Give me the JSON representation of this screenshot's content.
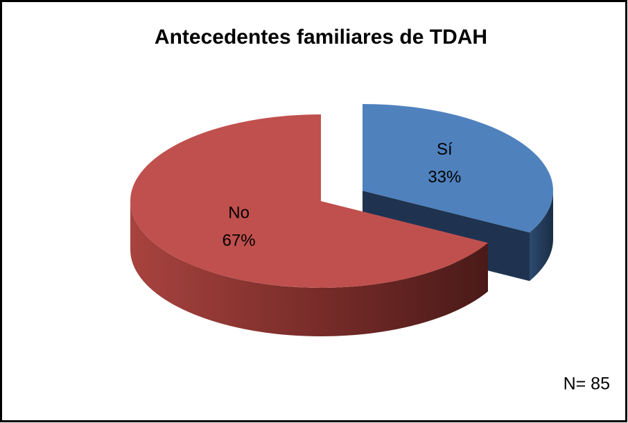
{
  "chart_data": {
    "type": "pie",
    "title": "Antecedentes familiares de  TDAH",
    "categories": [
      "Sí",
      "No"
    ],
    "values": [
      33,
      67
    ],
    "value_labels": [
      "33%",
      "67%"
    ],
    "colors": [
      "#4f81bd",
      "#c0504d"
    ],
    "annotation": "N= 85"
  }
}
